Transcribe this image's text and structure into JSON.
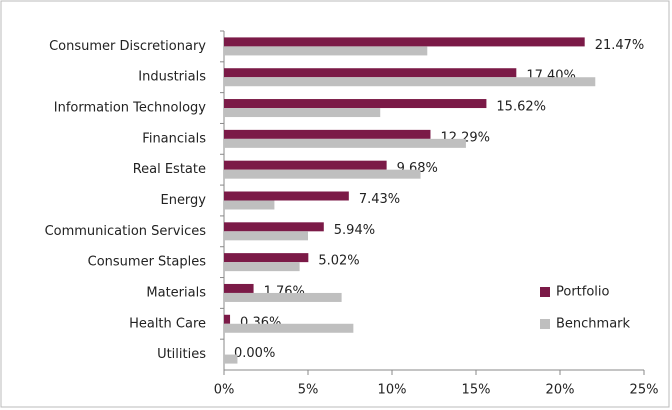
{
  "chart_data": {
    "type": "hbar",
    "categories": [
      "Consumer Discretionary",
      "Industrials",
      "Information Technology",
      "Financials",
      "Real Estate",
      "Energy",
      "Communication Services",
      "Consumer Staples",
      "Materials",
      "Health Care",
      "Utilities"
    ],
    "series": [
      {
        "name": "Portfolio",
        "color": "#7b1a47",
        "values": [
          21.47,
          17.4,
          15.62,
          12.29,
          9.68,
          7.43,
          5.94,
          5.02,
          1.76,
          0.36,
          0.0
        ],
        "value_labels": [
          "21.47%",
          "17.40%",
          "15.62%",
          "12.29%",
          "9.68%",
          "7.43%",
          "5.94%",
          "5.02%",
          "1.76%",
          "0.36%",
          "0.00%"
        ]
      },
      {
        "name": "Benchmark",
        "color": "#bfbfbf",
        "values": [
          12.1,
          22.1,
          9.3,
          14.4,
          11.7,
          3.0,
          5.0,
          4.5,
          7.0,
          7.7,
          0.8
        ]
      }
    ],
    "xlim": [
      0,
      25
    ],
    "xticks": [
      {
        "value": 0,
        "label": "0%"
      },
      {
        "value": 5,
        "label": "5%"
      },
      {
        "value": 10,
        "label": "10%"
      },
      {
        "value": 15,
        "label": "15%"
      },
      {
        "value": 20,
        "label": "20%"
      },
      {
        "value": 25,
        "label": "25%"
      }
    ],
    "legend": "lower right"
  }
}
